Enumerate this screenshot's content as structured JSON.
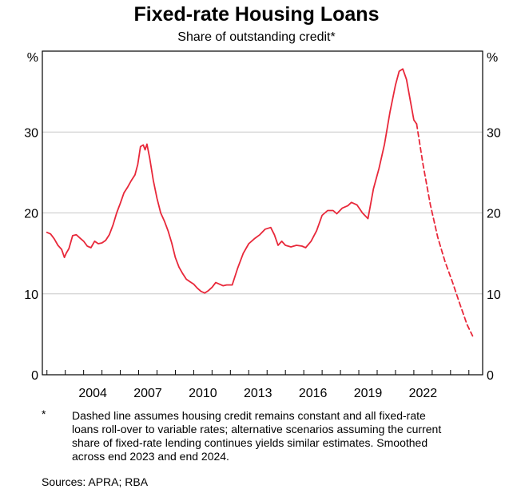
{
  "title": "Fixed-rate Housing Loans",
  "subtitle": "Share of outstanding credit*",
  "footnote_mark": "*",
  "footnote": "Dashed line assumes housing credit remains constant and all fixed-rate loans roll-over to variable rates; alternative scenarios assuming the current share of fixed-rate lending continues yields similar estimates. Smoothed across end 2023 and end 2024.",
  "sources": "Sources: APRA; RBA",
  "colors": {
    "series": "#e8283a",
    "grid": "#c8c8c8",
    "axis": "#000000"
  },
  "chart_data": {
    "type": "line",
    "title": "Fixed-rate Housing Loans",
    "subtitle": "Share of outstanding credit*",
    "ylabel_left": "%",
    "ylabel_right": "%",
    "ylim": [
      0,
      40
    ],
    "yticks": [
      0,
      10,
      20,
      30
    ],
    "xlim": [
      2001.75,
      2025.75
    ],
    "xticks": [
      2004,
      2007,
      2010,
      2013,
      2016,
      2019,
      2022
    ],
    "grid": true,
    "series": [
      {
        "style": "solid",
        "points": [
          [
            2002.0,
            17.6
          ],
          [
            2002.2,
            17.4
          ],
          [
            2002.4,
            16.8
          ],
          [
            2002.6,
            16.0
          ],
          [
            2002.8,
            15.5
          ],
          [
            2002.95,
            14.5
          ],
          [
            2003.05,
            15.0
          ],
          [
            2003.2,
            15.6
          ],
          [
            2003.4,
            17.2
          ],
          [
            2003.6,
            17.3
          ],
          [
            2003.8,
            16.9
          ],
          [
            2004.0,
            16.5
          ],
          [
            2004.2,
            15.9
          ],
          [
            2004.4,
            15.7
          ],
          [
            2004.6,
            16.5
          ],
          [
            2004.8,
            16.2
          ],
          [
            2005.0,
            16.3
          ],
          [
            2005.2,
            16.6
          ],
          [
            2005.4,
            17.3
          ],
          [
            2005.6,
            18.5
          ],
          [
            2005.8,
            20.0
          ],
          [
            2006.0,
            21.2
          ],
          [
            2006.2,
            22.5
          ],
          [
            2006.4,
            23.2
          ],
          [
            2006.6,
            24.0
          ],
          [
            2006.8,
            24.7
          ],
          [
            2006.95,
            26.0
          ],
          [
            2007.1,
            28.2
          ],
          [
            2007.25,
            28.4
          ],
          [
            2007.35,
            27.8
          ],
          [
            2007.45,
            28.5
          ],
          [
            2007.6,
            26.8
          ],
          [
            2007.8,
            24.0
          ],
          [
            2008.0,
            21.8
          ],
          [
            2008.2,
            20.0
          ],
          [
            2008.4,
            19.0
          ],
          [
            2008.6,
            17.8
          ],
          [
            2008.8,
            16.3
          ],
          [
            2009.0,
            14.5
          ],
          [
            2009.2,
            13.3
          ],
          [
            2009.4,
            12.5
          ],
          [
            2009.6,
            11.8
          ],
          [
            2009.8,
            11.5
          ],
          [
            2010.0,
            11.2
          ],
          [
            2010.2,
            10.7
          ],
          [
            2010.4,
            10.3
          ],
          [
            2010.6,
            10.1
          ],
          [
            2010.8,
            10.4
          ],
          [
            2011.0,
            10.8
          ],
          [
            2011.2,
            11.4
          ],
          [
            2011.4,
            11.2
          ],
          [
            2011.6,
            11.0
          ],
          [
            2011.8,
            11.1
          ],
          [
            2012.1,
            11.1
          ],
          [
            2012.4,
            13.2
          ],
          [
            2012.7,
            15.0
          ],
          [
            2013.0,
            16.2
          ],
          [
            2013.3,
            16.8
          ],
          [
            2013.6,
            17.3
          ],
          [
            2013.9,
            18.0
          ],
          [
            2014.2,
            18.2
          ],
          [
            2014.4,
            17.3
          ],
          [
            2014.6,
            16.0
          ],
          [
            2014.8,
            16.5
          ],
          [
            2015.0,
            16.0
          ],
          [
            2015.3,
            15.8
          ],
          [
            2015.6,
            16.0
          ],
          [
            2015.9,
            15.9
          ],
          [
            2016.1,
            15.7
          ],
          [
            2016.4,
            16.5
          ],
          [
            2016.7,
            17.8
          ],
          [
            2017.0,
            19.7
          ],
          [
            2017.3,
            20.3
          ],
          [
            2017.6,
            20.3
          ],
          [
            2017.8,
            19.9
          ],
          [
            2018.1,
            20.6
          ],
          [
            2018.4,
            20.9
          ],
          [
            2018.6,
            21.3
          ],
          [
            2018.9,
            21.0
          ],
          [
            2019.2,
            20.0
          ],
          [
            2019.5,
            19.3
          ],
          [
            2019.8,
            23.0
          ],
          [
            2020.1,
            25.5
          ],
          [
            2020.4,
            28.5
          ],
          [
            2020.7,
            32.5
          ],
          [
            2021.0,
            35.8
          ],
          [
            2021.2,
            37.5
          ],
          [
            2021.4,
            37.8
          ],
          [
            2021.6,
            36.5
          ],
          [
            2021.8,
            34.0
          ],
          [
            2022.0,
            31.5
          ],
          [
            2022.15,
            31.0
          ]
        ]
      },
      {
        "style": "dashed",
        "points": [
          [
            2022.15,
            31.0
          ],
          [
            2022.5,
            26.0
          ],
          [
            2022.9,
            21.0
          ],
          [
            2023.3,
            17.0
          ],
          [
            2023.7,
            14.0
          ],
          [
            2024.1,
            11.5
          ],
          [
            2024.5,
            8.8
          ],
          [
            2024.9,
            6.2
          ],
          [
            2025.2,
            4.8
          ]
        ]
      }
    ]
  }
}
